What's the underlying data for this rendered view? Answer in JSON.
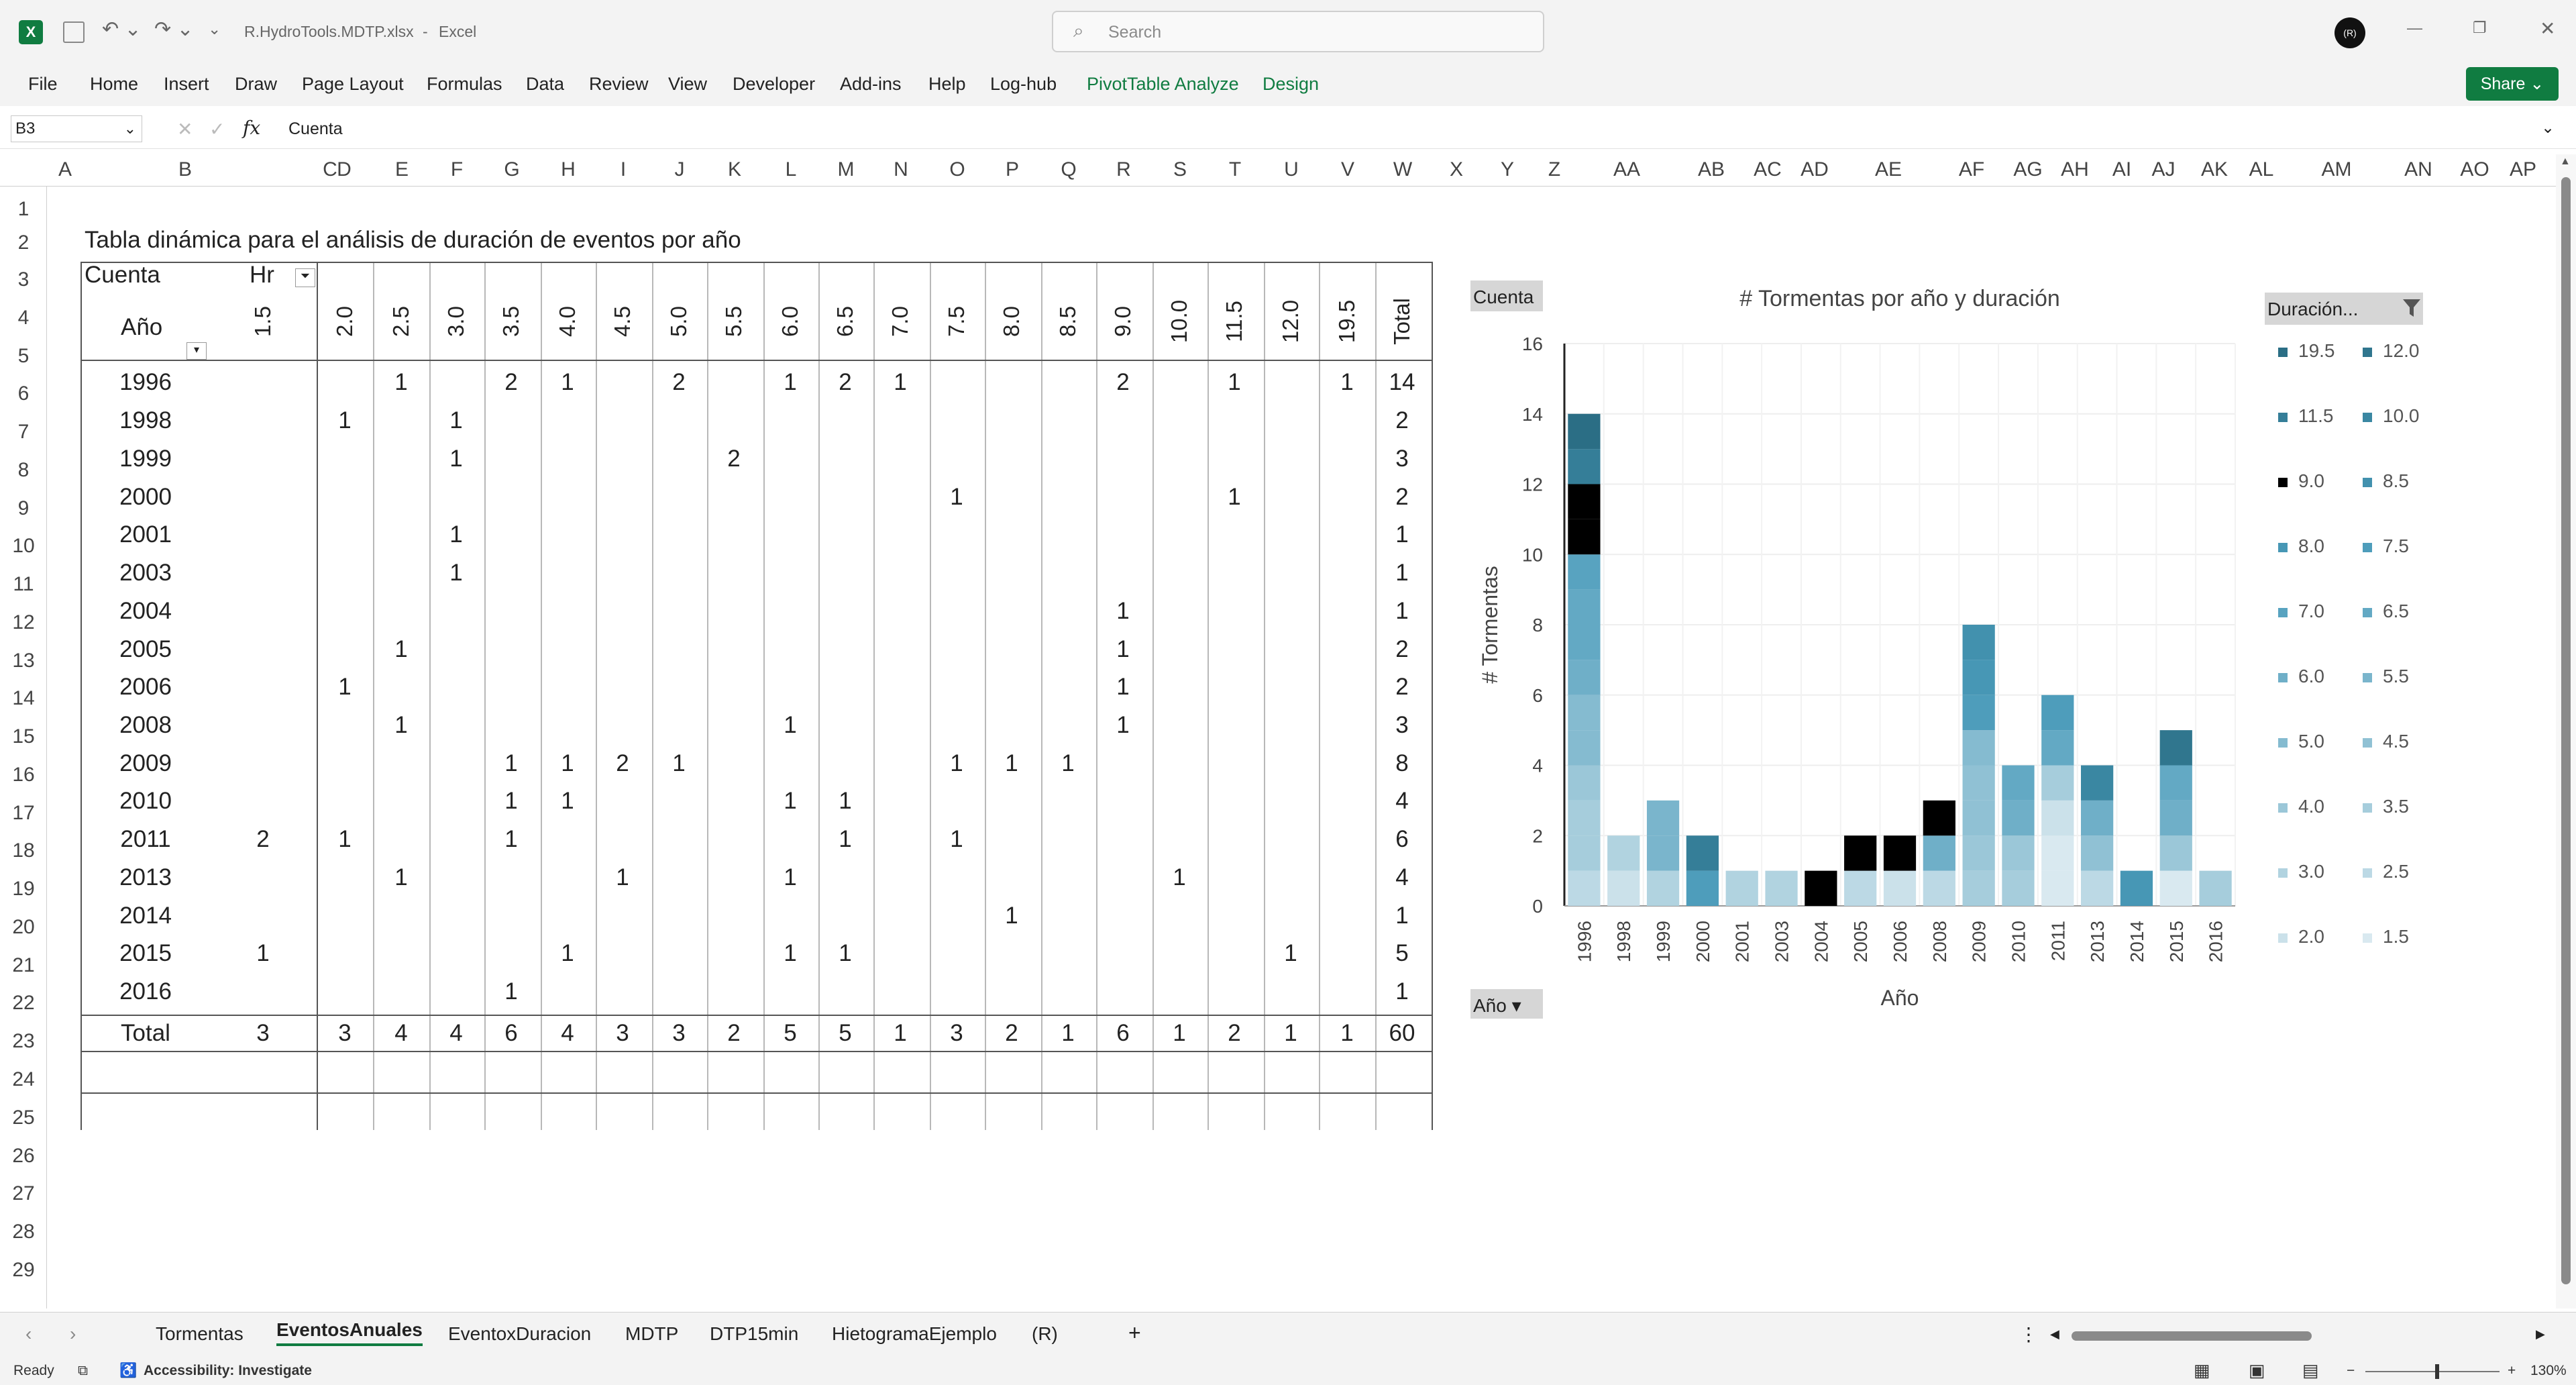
{
  "window": {
    "filename": "R.HydroTools.MDTP.xlsx",
    "app": "Excel",
    "search_placeholder": "Search",
    "avatar": "(R)"
  },
  "menu": {
    "items": [
      "File",
      "Home",
      "Insert",
      "Draw",
      "Page Layout",
      "Formulas",
      "Data",
      "Review",
      "View",
      "Developer",
      "Add-ins",
      "Help",
      "Log-hub",
      "PivotTable Analyze",
      "Design"
    ],
    "share": "Share"
  },
  "formula_bar": {
    "name_box": "B3",
    "content": "Cuenta",
    "fx": "fx"
  },
  "columns": [
    "A",
    "B",
    "C",
    "D",
    "E",
    "F",
    "G",
    "H",
    "I",
    "J",
    "K",
    "L",
    "M",
    "N",
    "O",
    "P",
    "Q",
    "R",
    "S",
    "T",
    "U",
    "V",
    "W",
    "X",
    "Y",
    "Z",
    "AA",
    "AB",
    "AC",
    "AD",
    "AE",
    "AF",
    "AG",
    "AH",
    "AI",
    "AJ",
    "AK",
    "AL",
    "AM",
    "AN",
    "AO",
    "AP"
  ],
  "rows": [
    "1",
    "2",
    "3",
    "4",
    "5",
    "6",
    "7",
    "8",
    "9",
    "10",
    "11",
    "12",
    "13",
    "14",
    "15",
    "16",
    "17",
    "18",
    "19",
    "20",
    "21",
    "22",
    "23",
    "24",
    "25",
    "26",
    "27",
    "28",
    "29"
  ],
  "pivot": {
    "title": "Tabla dinámica para el análisis de duración de eventos por año",
    "value_label": "Cuenta",
    "col_label": "Hr",
    "row_label": "Año",
    "durations": [
      "1.5",
      "2.0",
      "2.5",
      "3.0",
      "3.5",
      "4.0",
      "4.5",
      "5.0",
      "5.5",
      "6.0",
      "6.5",
      "7.0",
      "7.5",
      "8.0",
      "8.5",
      "9.0",
      "10.0",
      "11.5",
      "12.0",
      "19.5",
      "Total"
    ],
    "rows": [
      {
        "year": "1996",
        "cells": [
          "",
          "",
          "1",
          "",
          "2",
          "1",
          "",
          "2",
          "",
          "1",
          "2",
          "1",
          "",
          "",
          "",
          "2",
          "",
          "1",
          "",
          "1",
          "14"
        ]
      },
      {
        "year": "1998",
        "cells": [
          "",
          "1",
          "",
          "1",
          "",
          "",
          "",
          "",
          "",
          "",
          "",
          "",
          "",
          "",
          "",
          "",
          "",
          "",
          "",
          "",
          "2"
        ]
      },
      {
        "year": "1999",
        "cells": [
          "",
          "",
          "",
          "1",
          "",
          "",
          "",
          "",
          "2",
          "",
          "",
          "",
          "",
          "",
          "",
          "",
          "",
          "",
          "",
          "",
          "3"
        ]
      },
      {
        "year": "2000",
        "cells": [
          "",
          "",
          "",
          "",
          "",
          "",
          "",
          "",
          "",
          "",
          "",
          "",
          "1",
          "",
          "",
          "",
          "",
          "1",
          "",
          "",
          "2"
        ]
      },
      {
        "year": "2001",
        "cells": [
          "",
          "",
          "",
          "1",
          "",
          "",
          "",
          "",
          "",
          "",
          "",
          "",
          "",
          "",
          "",
          "",
          "",
          "",
          "",
          "",
          "1"
        ]
      },
      {
        "year": "2003",
        "cells": [
          "",
          "",
          "",
          "1",
          "",
          "",
          "",
          "",
          "",
          "",
          "",
          "",
          "",
          "",
          "",
          "",
          "",
          "",
          "",
          "",
          "1"
        ]
      },
      {
        "year": "2004",
        "cells": [
          "",
          "",
          "",
          "",
          "",
          "",
          "",
          "",
          "",
          "",
          "",
          "",
          "",
          "",
          "",
          "1",
          "",
          "",
          "",
          "",
          "1"
        ]
      },
      {
        "year": "2005",
        "cells": [
          "",
          "",
          "1",
          "",
          "",
          "",
          "",
          "",
          "",
          "",
          "",
          "",
          "",
          "",
          "",
          "1",
          "",
          "",
          "",
          "",
          "2"
        ]
      },
      {
        "year": "2006",
        "cells": [
          "",
          "1",
          "",
          "",
          "",
          "",
          "",
          "",
          "",
          "",
          "",
          "",
          "",
          "",
          "",
          "1",
          "",
          "",
          "",
          "",
          "2"
        ]
      },
      {
        "year": "2008",
        "cells": [
          "",
          "",
          "1",
          "",
          "",
          "",
          "",
          "",
          "",
          "1",
          "",
          "",
          "",
          "",
          "",
          "1",
          "",
          "",
          "",
          "",
          "3"
        ]
      },
      {
        "year": "2009",
        "cells": [
          "",
          "",
          "",
          "",
          "1",
          "1",
          "2",
          "1",
          "",
          "",
          "",
          "",
          "1",
          "1",
          "1",
          "",
          "",
          "",
          "",
          "",
          "8"
        ]
      },
      {
        "year": "2010",
        "cells": [
          "",
          "",
          "",
          "",
          "1",
          "1",
          "",
          "",
          "",
          "1",
          "1",
          "",
          "",
          "",
          "",
          "",
          "",
          "",
          "",
          "",
          "4"
        ]
      },
      {
        "year": "2011",
        "cells": [
          "2",
          "1",
          "",
          "",
          "1",
          "",
          "",
          "",
          "",
          "",
          "1",
          "",
          "1",
          "",
          "",
          "",
          "",
          "",
          "",
          "",
          "6"
        ]
      },
      {
        "year": "2013",
        "cells": [
          "",
          "",
          "1",
          "",
          "",
          "",
          "1",
          "",
          "",
          "1",
          "",
          "",
          "",
          "",
          "",
          "",
          "1",
          "",
          "",
          "",
          "4"
        ]
      },
      {
        "year": "2014",
        "cells": [
          "",
          "",
          "",
          "",
          "",
          "",
          "",
          "",
          "",
          "",
          "",
          "",
          "",
          "1",
          "",
          "",
          "",
          "",
          "",
          "",
          "1"
        ]
      },
      {
        "year": "2015",
        "cells": [
          "1",
          "",
          "",
          "",
          "",
          "1",
          "",
          "",
          "",
          "1",
          "1",
          "",
          "",
          "",
          "",
          "",
          "",
          "",
          "1",
          "",
          "5"
        ]
      },
      {
        "year": "2016",
        "cells": [
          "",
          "",
          "",
          "",
          "1",
          "",
          "",
          "",
          "",
          "",
          "",
          "",
          "",
          "",
          "",
          "",
          "",
          "",
          "",
          "",
          "1"
        ]
      }
    ],
    "total_label": "Total",
    "totals": [
      "3",
      "3",
      "4",
      "4",
      "6",
      "4",
      "3",
      "3",
      "2",
      "5",
      "5",
      "1",
      "3",
      "2",
      "1",
      "6",
      "1",
      "2",
      "1",
      "1",
      "60"
    ]
  },
  "chart_data": {
    "type": "bar",
    "stacked": true,
    "title": "# Tormentas por año y duración",
    "xlabel": "Año",
    "ylabel": "# Tormentas",
    "ylim": [
      0,
      16
    ],
    "yticks": [
      "0",
      "2",
      "4",
      "6",
      "8",
      "10",
      "12",
      "14",
      "16"
    ],
    "categories": [
      "1996",
      "1998",
      "1999",
      "2000",
      "2001",
      "2003",
      "2004",
      "2005",
      "2006",
      "2008",
      "2009",
      "2010",
      "2011",
      "2013",
      "2014",
      "2015",
      "2016"
    ],
    "series": [
      {
        "name": "1.5",
        "color": "#d9e9f0",
        "values": [
          0,
          0,
          0,
          0,
          0,
          0,
          0,
          0,
          0,
          0,
          0,
          0,
          2,
          0,
          0,
          1,
          0
        ]
      },
      {
        "name": "2.0",
        "color": "#cbe1ea",
        "values": [
          0,
          1,
          0,
          0,
          0,
          0,
          0,
          0,
          1,
          0,
          0,
          0,
          1,
          0,
          0,
          0,
          0
        ]
      },
      {
        "name": "2.5",
        "color": "#bcd9e5",
        "values": [
          1,
          0,
          0,
          0,
          0,
          0,
          0,
          1,
          0,
          1,
          0,
          0,
          0,
          1,
          0,
          0,
          0
        ]
      },
      {
        "name": "3.0",
        "color": "#b1d3e0",
        "values": [
          0,
          1,
          1,
          0,
          1,
          1,
          0,
          0,
          0,
          0,
          0,
          0,
          0,
          0,
          0,
          0,
          0
        ]
      },
      {
        "name": "3.5",
        "color": "#a6cddc",
        "values": [
          2,
          0,
          0,
          0,
          0,
          0,
          0,
          0,
          0,
          0,
          1,
          1,
          1,
          0,
          0,
          0,
          1
        ]
      },
      {
        "name": "4.0",
        "color": "#9bc7d8",
        "values": [
          1,
          0,
          0,
          0,
          0,
          0,
          0,
          0,
          0,
          0,
          1,
          1,
          0,
          0,
          0,
          1,
          0
        ]
      },
      {
        "name": "4.5",
        "color": "#90c1d4",
        "values": [
          0,
          0,
          0,
          0,
          0,
          0,
          0,
          0,
          0,
          0,
          2,
          0,
          0,
          1,
          0,
          0,
          0
        ]
      },
      {
        "name": "5.0",
        "color": "#85bbd0",
        "values": [
          2,
          0,
          0,
          0,
          0,
          0,
          0,
          0,
          0,
          0,
          1,
          0,
          0,
          0,
          0,
          0,
          0
        ]
      },
      {
        "name": "5.5",
        "color": "#7ab5cc",
        "values": [
          0,
          0,
          2,
          0,
          0,
          0,
          0,
          0,
          0,
          0,
          0,
          0,
          0,
          0,
          0,
          0,
          0
        ]
      },
      {
        "name": "6.0",
        "color": "#6fafc8",
        "values": [
          1,
          0,
          0,
          0,
          0,
          0,
          0,
          0,
          0,
          1,
          0,
          1,
          0,
          1,
          0,
          1,
          0
        ]
      },
      {
        "name": "6.5",
        "color": "#63a9c4",
        "values": [
          2,
          0,
          0,
          0,
          0,
          0,
          0,
          0,
          0,
          0,
          0,
          1,
          1,
          0,
          0,
          1,
          0
        ]
      },
      {
        "name": "7.0",
        "color": "#58a3c0",
        "values": [
          1,
          0,
          0,
          0,
          0,
          0,
          0,
          0,
          0,
          0,
          0,
          0,
          0,
          0,
          0,
          0,
          0
        ]
      },
      {
        "name": "7.5",
        "color": "#4e9dbb",
        "values": [
          0,
          0,
          0,
          1,
          0,
          0,
          0,
          0,
          0,
          0,
          1,
          0,
          1,
          0,
          0,
          0,
          0
        ]
      },
      {
        "name": "8.0",
        "color": "#4797b5",
        "values": [
          0,
          0,
          0,
          0,
          0,
          0,
          0,
          0,
          0,
          0,
          1,
          0,
          0,
          0,
          1,
          0,
          0
        ]
      },
      {
        "name": "8.5",
        "color": "#4291ae",
        "values": [
          0,
          0,
          0,
          0,
          0,
          0,
          0,
          0,
          0,
          0,
          1,
          0,
          0,
          0,
          0,
          0,
          0
        ]
      },
      {
        "name": "9.0",
        "color": "#000000",
        "values": [
          2,
          0,
          0,
          0,
          0,
          0,
          1,
          1,
          1,
          1,
          0,
          0,
          0,
          0,
          0,
          0,
          0
        ]
      },
      {
        "name": "10.0",
        "color": "#3a87a2",
        "values": [
          0,
          0,
          0,
          0,
          0,
          0,
          0,
          0,
          0,
          0,
          0,
          0,
          0,
          1,
          0,
          0,
          0
        ]
      },
      {
        "name": "11.5",
        "color": "#357e98",
        "values": [
          1,
          0,
          0,
          1,
          0,
          0,
          0,
          0,
          0,
          0,
          0,
          0,
          0,
          0,
          0,
          0,
          0
        ]
      },
      {
        "name": "12.0",
        "color": "#30768e",
        "values": [
          0,
          0,
          0,
          0,
          0,
          0,
          0,
          0,
          0,
          0,
          0,
          0,
          0,
          0,
          0,
          1,
          0
        ]
      },
      {
        "name": "19.5",
        "color": "#2b6e85",
        "values": [
          1,
          0,
          0,
          0,
          0,
          0,
          0,
          0,
          0,
          0,
          0,
          0,
          0,
          0,
          0,
          0,
          0
        ]
      }
    ],
    "field_buttons": {
      "value": "Cuenta",
      "axis": "Año",
      "legend": "Duración..."
    }
  },
  "sheet_tabs": [
    "Tormentas",
    "EventosAnuales",
    "EventoxDuracion",
    "MDTP",
    "DTP15min",
    "HietogramaEjemplo",
    "(R)"
  ],
  "active_tab": "EventosAnuales",
  "status": {
    "ready": "Ready",
    "accessibility": "Accessibility: Investigate",
    "zoom": "130%"
  }
}
